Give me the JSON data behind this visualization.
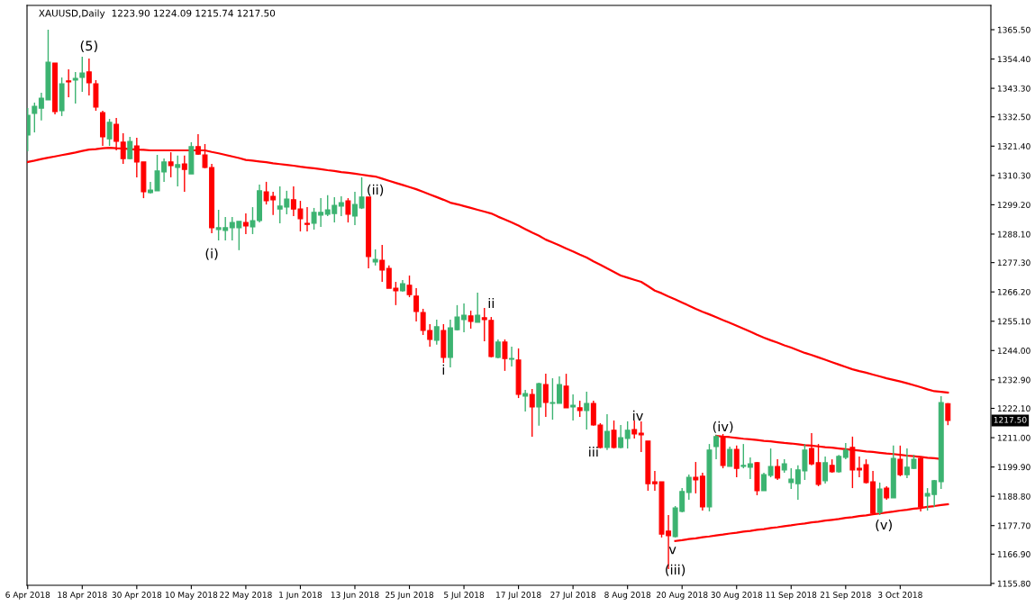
{
  "chart_data": {
    "type": "candlestick",
    "title": "XAUUSD,Daily",
    "subtitle": "1223.90 1224.09 1215.74 1217.50",
    "categories": [
      "6 Apr 2018",
      null,
      null,
      null,
      null,
      null,
      null,
      null,
      "18 Apr 2018",
      null,
      null,
      null,
      null,
      null,
      null,
      null,
      "30 Apr 2018",
      null,
      null,
      null,
      null,
      null,
      null,
      null,
      "10 May 2018",
      null,
      null,
      null,
      null,
      null,
      null,
      null,
      "22 May 2018",
      null,
      null,
      null,
      null,
      null,
      null,
      null,
      "1 Jun 2018",
      null,
      null,
      null,
      null,
      null,
      null,
      null,
      "13 Jun 2018",
      null,
      null,
      null,
      null,
      null,
      null,
      null,
      "25 Jun 2018",
      null,
      null,
      null,
      null,
      null,
      null,
      null,
      "5 Jul 2018",
      null,
      null,
      null,
      null,
      null,
      null,
      null,
      "17 Jul 2018",
      null,
      null,
      null,
      null,
      null,
      null,
      null,
      "27 Jul 2018",
      null,
      null,
      null,
      null,
      null,
      null,
      null,
      "8 Aug 2018",
      null,
      null,
      null,
      null,
      null,
      null,
      null,
      "20 Aug 2018",
      null,
      null,
      null,
      null,
      null,
      null,
      null,
      "30 Aug 2018",
      null,
      null,
      null,
      null,
      null,
      null,
      null,
      "11 Sep 2018",
      null,
      null,
      null,
      null,
      null,
      null,
      null,
      "21 Sep 2018",
      null,
      null,
      null,
      null,
      null,
      null,
      null,
      "3 Oct 2018",
      null,
      null,
      null,
      null,
      null,
      null,
      null
    ],
    "ohlc": [
      [
        1325.6,
        1335.8,
        1319.5,
        1333.1
      ],
      [
        1333.8,
        1337.9,
        1326.6,
        1336.5
      ],
      [
        1335.8,
        1341.6,
        1331.1,
        1339.6
      ],
      [
        1338.9,
        1365.5,
        1338.9,
        1353.2
      ],
      [
        1352.9,
        1352.9,
        1333.4,
        1334.5
      ],
      [
        1334.8,
        1347.4,
        1332.8,
        1345.0
      ],
      [
        1346.1,
        1350.5,
        1339.9,
        1345.7
      ],
      [
        1346.4,
        1349.5,
        1337.5,
        1347.1
      ],
      [
        1347.4,
        1355.3,
        1342.0,
        1349.1
      ],
      [
        1349.5,
        1354.6,
        1340.6,
        1345.4
      ],
      [
        1345.0,
        1346.4,
        1334.8,
        1336.2
      ],
      [
        1334.1,
        1334.8,
        1321.5,
        1324.9
      ],
      [
        1324.2,
        1331.7,
        1321.5,
        1330.4
      ],
      [
        1329.7,
        1332.1,
        1319.8,
        1323.2
      ],
      [
        1322.9,
        1326.3,
        1314.7,
        1316.7
      ],
      [
        1316.7,
        1324.9,
        1316.4,
        1323.2
      ],
      [
        1321.5,
        1324.6,
        1309.6,
        1315.4
      ],
      [
        1315.4,
        1315.4,
        1301.7,
        1304.1
      ],
      [
        1303.8,
        1307.9,
        1303.4,
        1304.8
      ],
      [
        1304.5,
        1318.1,
        1304.5,
        1312.0
      ],
      [
        1311.6,
        1316.7,
        1307.9,
        1315.4
      ],
      [
        1315.4,
        1319.1,
        1309.6,
        1314.0
      ],
      [
        1313.3,
        1317.8,
        1306.2,
        1314.4
      ],
      [
        1314.7,
        1317.8,
        1304.1,
        1312.6
      ],
      [
        1310.9,
        1322.9,
        1310.9,
        1321.2
      ],
      [
        1321.2,
        1325.9,
        1318.1,
        1318.4
      ],
      [
        1318.1,
        1322.2,
        1313.0,
        1313.3
      ],
      [
        1313.3,
        1314.7,
        1288.4,
        1290.5
      ],
      [
        1289.8,
        1297.3,
        1285.7,
        1290.5
      ],
      [
        1289.5,
        1294.6,
        1285.7,
        1290.5
      ],
      [
        1290.5,
        1294.6,
        1285.7,
        1292.5
      ],
      [
        1290.5,
        1292.9,
        1282.0,
        1292.9
      ],
      [
        1292.5,
        1295.9,
        1288.1,
        1291.2
      ],
      [
        1290.8,
        1298.3,
        1288.1,
        1293.2
      ],
      [
        1293.2,
        1306.8,
        1292.5,
        1304.5
      ],
      [
        1304.1,
        1307.9,
        1299.3,
        1300.7
      ],
      [
        1302.4,
        1304.1,
        1295.3,
        1301.1
      ],
      [
        1297.6,
        1306.2,
        1292.2,
        1298.7
      ],
      [
        1298.3,
        1304.5,
        1295.6,
        1301.4
      ],
      [
        1301.1,
        1306.2,
        1294.9,
        1297.6
      ],
      [
        1297.6,
        1300.7,
        1289.1,
        1293.9
      ],
      [
        1292.2,
        1298.3,
        1289.1,
        1291.8
      ],
      [
        1292.2,
        1298.0,
        1289.8,
        1296.3
      ],
      [
        1295.3,
        1301.7,
        1290.8,
        1296.3
      ],
      [
        1295.6,
        1302.8,
        1294.9,
        1297.3
      ],
      [
        1295.9,
        1302.1,
        1292.5,
        1299.0
      ],
      [
        1298.7,
        1302.4,
        1294.9,
        1300.0
      ],
      [
        1300.7,
        1301.7,
        1292.5,
        1295.6
      ],
      [
        1294.9,
        1304.1,
        1291.5,
        1299.3
      ],
      [
        1298.0,
        1309.6,
        1297.6,
        1302.1
      ],
      [
        1302.1,
        1302.1,
        1275.1,
        1279.6
      ],
      [
        1277.5,
        1282.3,
        1276.2,
        1278.5
      ],
      [
        1278.2,
        1284.0,
        1270.0,
        1274.5
      ],
      [
        1275.1,
        1276.2,
        1267.6,
        1267.6
      ],
      [
        1267.6,
        1270.0,
        1261.2,
        1266.6
      ],
      [
        1266.6,
        1270.7,
        1266.3,
        1269.3
      ],
      [
        1268.7,
        1272.4,
        1264.2,
        1265.2
      ],
      [
        1264.6,
        1267.6,
        1255.0,
        1258.8
      ],
      [
        1258.4,
        1259.8,
        1249.9,
        1251.6
      ],
      [
        1251.6,
        1254.0,
        1245.5,
        1248.2
      ],
      [
        1247.9,
        1255.7,
        1246.2,
        1253.0
      ],
      [
        1251.6,
        1254.0,
        1239.3,
        1241.4
      ],
      [
        1241.4,
        1255.7,
        1237.6,
        1252.6
      ],
      [
        1251.9,
        1261.2,
        1251.6,
        1256.7
      ],
      [
        1255.7,
        1261.8,
        1250.9,
        1257.4
      ],
      [
        1257.1,
        1259.1,
        1252.3,
        1255.0
      ],
      [
        1254.7,
        1265.9,
        1254.7,
        1257.4
      ],
      [
        1256.4,
        1260.1,
        1247.5,
        1255.7
      ],
      [
        1255.4,
        1256.7,
        1241.4,
        1241.7
      ],
      [
        1241.4,
        1248.2,
        1241.0,
        1247.2
      ],
      [
        1247.2,
        1248.2,
        1236.3,
        1241.0
      ],
      [
        1240.7,
        1245.5,
        1238.0,
        1241.0
      ],
      [
        1240.4,
        1244.8,
        1226.0,
        1227.4
      ],
      [
        1226.7,
        1229.1,
        1220.9,
        1227.7
      ],
      [
        1227.4,
        1229.4,
        1211.4,
        1222.6
      ],
      [
        1222.6,
        1231.8,
        1215.5,
        1231.5
      ],
      [
        1231.1,
        1235.2,
        1218.9,
        1224.3
      ],
      [
        1224.0,
        1233.5,
        1217.8,
        1224.3
      ],
      [
        1224.0,
        1234.2,
        1224.0,
        1231.1
      ],
      [
        1230.5,
        1235.2,
        1222.3,
        1222.3
      ],
      [
        1222.6,
        1227.4,
        1217.5,
        1223.3
      ],
      [
        1222.3,
        1225.0,
        1218.9,
        1221.3
      ],
      [
        1221.3,
        1228.4,
        1214.1,
        1224.0
      ],
      [
        1224.0,
        1225.0,
        1215.5,
        1215.8
      ],
      [
        1215.8,
        1216.5,
        1206.9,
        1207.3
      ],
      [
        1207.3,
        1219.9,
        1206.3,
        1213.4
      ],
      [
        1213.8,
        1217.5,
        1206.9,
        1207.3
      ],
      [
        1207.3,
        1215.8,
        1206.9,
        1211.0
      ],
      [
        1210.7,
        1217.2,
        1206.9,
        1213.8
      ],
      [
        1214.1,
        1217.5,
        1210.7,
        1212.4
      ],
      [
        1212.7,
        1217.2,
        1205.6,
        1212.1
      ],
      [
        1209.7,
        1209.7,
        1190.9,
        1193.6
      ],
      [
        1194.3,
        1198.4,
        1190.9,
        1193.6
      ],
      [
        1194.3,
        1194.3,
        1173.2,
        1174.5
      ],
      [
        1175.6,
        1181.7,
        1161.2,
        1173.9
      ],
      [
        1173.5,
        1185.1,
        1173.2,
        1184.4
      ],
      [
        1183.1,
        1191.9,
        1182.7,
        1190.6
      ],
      [
        1190.2,
        1197.0,
        1187.5,
        1196.0
      ],
      [
        1196.0,
        1201.8,
        1189.9,
        1195.0
      ],
      [
        1196.4,
        1197.7,
        1183.4,
        1184.8
      ],
      [
        1184.8,
        1208.6,
        1183.1,
        1206.3
      ],
      [
        1207.6,
        1212.1,
        1202.8,
        1211.4
      ],
      [
        1211.4,
        1212.4,
        1199.4,
        1200.5
      ],
      [
        1200.1,
        1207.6,
        1200.1,
        1206.6
      ],
      [
        1206.6,
        1208.0,
        1196.0,
        1199.4
      ],
      [
        1200.1,
        1208.6,
        1199.4,
        1200.5
      ],
      [
        1199.8,
        1203.5,
        1195.3,
        1201.1
      ],
      [
        1201.5,
        1201.8,
        1189.2,
        1190.9
      ],
      [
        1190.9,
        1197.7,
        1190.9,
        1197.0
      ],
      [
        1196.7,
        1206.9,
        1196.0,
        1200.1
      ],
      [
        1200.1,
        1202.8,
        1195.0,
        1195.7
      ],
      [
        1198.8,
        1202.8,
        1197.7,
        1201.1
      ],
      [
        1194.0,
        1199.4,
        1191.6,
        1195.3
      ],
      [
        1193.6,
        1200.5,
        1187.5,
        1198.8
      ],
      [
        1198.4,
        1208.6,
        1195.0,
        1206.3
      ],
      [
        1206.9,
        1212.7,
        1200.5,
        1201.1
      ],
      [
        1201.5,
        1208.6,
        1192.6,
        1193.3
      ],
      [
        1194.7,
        1203.9,
        1193.6,
        1201.5
      ],
      [
        1200.5,
        1202.8,
        1197.7,
        1198.1
      ],
      [
        1198.1,
        1204.5,
        1197.7,
        1203.9
      ],
      [
        1203.5,
        1209.0,
        1202.8,
        1206.3
      ],
      [
        1207.3,
        1211.4,
        1191.9,
        1198.8
      ],
      [
        1199.4,
        1203.9,
        1196.0,
        1198.8
      ],
      [
        1200.8,
        1202.8,
        1193.6,
        1194.0
      ],
      [
        1194.3,
        1198.4,
        1181.7,
        1182.4
      ],
      [
        1182.7,
        1194.0,
        1181.7,
        1191.6
      ],
      [
        1191.9,
        1192.6,
        1187.5,
        1188.2
      ],
      [
        1188.2,
        1208.0,
        1188.2,
        1203.2
      ],
      [
        1202.8,
        1208.0,
        1196.4,
        1197.0
      ],
      [
        1197.0,
        1206.9,
        1195.7,
        1199.8
      ],
      [
        1199.4,
        1204.5,
        1199.1,
        1202.8
      ],
      [
        1203.2,
        1203.9,
        1183.1,
        1184.8
      ],
      [
        1188.9,
        1191.9,
        1183.4,
        1189.9
      ],
      [
        1189.5,
        1195.0,
        1184.8,
        1194.7
      ],
      [
        1194.3,
        1226.7,
        1191.6,
        1224.3
      ],
      [
        1223.9,
        1224.09,
        1215.74,
        1217.5
      ]
    ],
    "colors": [
      "#3cb371",
      "#3cb371",
      "#3cb371",
      "#3cb371",
      "#ff0000",
      "#3cb371",
      "#ff0000",
      "#3cb371",
      "#3cb371",
      "#ff0000",
      "#ff0000",
      "#ff0000",
      "#3cb371",
      "#ff0000",
      "#ff0000",
      "#3cb371",
      "#ff0000",
      "#ff0000",
      "#3cb371",
      "#3cb371",
      "#3cb371",
      "#ff0000",
      "#3cb371",
      "#ff0000",
      "#3cb371",
      "#ff0000",
      "#ff0000",
      "#ff0000",
      "#3cb371",
      "#3cb371",
      "#3cb371",
      "#3cb371",
      "#ff0000",
      "#3cb371",
      "#3cb371",
      "#ff0000",
      "#ff0000",
      "#3cb371",
      "#3cb371",
      "#ff0000",
      "#ff0000",
      "#ff0000",
      "#3cb371",
      "#3cb371",
      "#3cb371",
      "#3cb371",
      "#3cb371",
      "#ff0000",
      "#3cb371",
      "#3cb371",
      "#ff0000",
      "#3cb371",
      "#ff0000",
      "#ff0000",
      "#ff0000",
      "#3cb371",
      "#ff0000",
      "#ff0000",
      "#ff0000",
      "#ff0000",
      "#3cb371",
      "#ff0000",
      "#3cb371",
      "#3cb371",
      "#3cb371",
      "#ff0000",
      "#3cb371",
      "#ff0000",
      "#ff0000",
      "#3cb371",
      "#ff0000",
      "#3cb371",
      "#ff0000",
      "#3cb371",
      "#ff0000",
      "#3cb371",
      "#ff0000",
      "#3cb371",
      "#3cb371",
      "#ff0000",
      "#3cb371",
      "#ff0000",
      "#3cb371",
      "#ff0000",
      "#ff0000",
      "#3cb371",
      "#ff0000",
      "#3cb371",
      "#3cb371",
      "#ff0000",
      "#ff0000",
      "#ff0000",
      "#ff0000",
      "#ff0000",
      "#ff0000",
      "#3cb371",
      "#3cb371",
      "#3cb371",
      "#ff0000",
      "#ff0000",
      "#3cb371",
      "#3cb371",
      "#ff0000",
      "#3cb371",
      "#ff0000",
      "#3cb371",
      "#3cb371",
      "#ff0000",
      "#3cb371",
      "#3cb371",
      "#ff0000",
      "#3cb371",
      "#3cb371",
      "#3cb371",
      "#3cb371",
      "#ff0000",
      "#ff0000",
      "#3cb371",
      "#ff0000",
      "#3cb371",
      "#3cb371",
      "#ff0000",
      "#ff0000",
      "#ff0000",
      "#ff0000",
      "#3cb371",
      "#ff0000",
      "#3cb371",
      "#ff0000",
      "#3cb371",
      "#3cb371",
      "#ff0000",
      "#3cb371",
      "#3cb371",
      "#3cb371",
      "#ff0000"
    ],
    "series": [
      {
        "type": "line",
        "color": "#ff0000",
        "values": [
          1315.4,
          1315.9,
          1316.5,
          1317.0,
          1317.5,
          1318.0,
          1318.5,
          1319.0,
          1319.6,
          1320.1,
          1320.3,
          1320.6,
          1320.8,
          1320.6,
          1320.5,
          1320.3,
          1320.1,
          1320.0,
          1319.8,
          1319.8,
          1319.8,
          1319.8,
          1319.8,
          1319.8,
          1319.8,
          1319.8,
          1319.8,
          1319.2,
          1318.7,
          1318.1,
          1317.5,
          1316.9,
          1316.2,
          1315.9,
          1315.6,
          1315.3,
          1314.9,
          1314.6,
          1314.3,
          1314.0,
          1313.6,
          1313.3,
          1313.0,
          1312.7,
          1312.3,
          1312.0,
          1311.6,
          1311.3,
          1311.0,
          1310.6,
          1310.2,
          1309.9,
          1309.1,
          1308.3,
          1307.5,
          1306.7,
          1305.9,
          1305.1,
          1304.1,
          1303.1,
          1302.1,
          1301.1,
          1300.0,
          1299.4,
          1298.7,
          1298.0,
          1297.3,
          1296.6,
          1295.9,
          1294.7,
          1293.6,
          1292.5,
          1291.3,
          1290.0,
          1288.7,
          1287.5,
          1286.0,
          1284.9,
          1283.8,
          1282.6,
          1281.5,
          1280.3,
          1279.2,
          1277.8,
          1276.5,
          1275.1,
          1273.8,
          1272.4,
          1271.6,
          1270.8,
          1270.0,
          1268.4,
          1266.7,
          1265.7,
          1264.5,
          1263.4,
          1262.2,
          1261.0,
          1259.8,
          1258.7,
          1257.7,
          1256.6,
          1255.5,
          1254.5,
          1253.4,
          1252.3,
          1251.2,
          1250.0,
          1248.9,
          1247.9,
          1247.0,
          1246.0,
          1245.1,
          1244.1,
          1243.1,
          1242.3,
          1241.4,
          1240.5,
          1239.6,
          1238.7,
          1237.8,
          1236.9,
          1236.2,
          1235.6,
          1234.9,
          1234.2,
          1233.5,
          1232.9,
          1232.3,
          1231.6,
          1230.9,
          1230.1,
          1229.3,
          1228.6,
          1228.4,
          1228.1
        ]
      },
      {
        "type": "line",
        "color": "#ff0000",
        "values": [
          null,
          null,
          null,
          null,
          null,
          null,
          null,
          null,
          null,
          null,
          null,
          null,
          null,
          null,
          null,
          null,
          null,
          null,
          null,
          null,
          null,
          null,
          null,
          null,
          null,
          null,
          null,
          null,
          null,
          null,
          null,
          null,
          null,
          null,
          null,
          null,
          null,
          null,
          null,
          null,
          null,
          null,
          null,
          null,
          null,
          null,
          null,
          null,
          null,
          null,
          null,
          null,
          null,
          null,
          null,
          null,
          null,
          null,
          null,
          null,
          null,
          null,
          null,
          null,
          null,
          null,
          null,
          null,
          null,
          null,
          null,
          null,
          null,
          null,
          null,
          null,
          null,
          null,
          null,
          null,
          null,
          null,
          null,
          null,
          null,
          null,
          null,
          null,
          null,
          null,
          null,
          null,
          null,
          null,
          null,
          null,
          null,
          null,
          null,
          null,
          null,
          1211.7,
          1211.4,
          1211.2,
          1210.9,
          1210.6,
          1210.4,
          1210.1,
          1209.8,
          1209.6,
          1209.3,
          1209.0,
          1208.8,
          1208.5,
          1208.2,
          1208.0,
          1207.7,
          1207.4,
          1207.2,
          1206.9,
          1206.6,
          1206.4,
          1206.1,
          1205.8,
          1205.6,
          1205.3,
          1205.0,
          1204.8,
          1204.5,
          1204.2,
          1204.0,
          1203.7,
          1203.4,
          1203.2,
          1202.9,
          null
        ]
      },
      {
        "type": "line",
        "color": "#ff0000",
        "values": [
          null,
          null,
          null,
          null,
          null,
          null,
          null,
          null,
          null,
          null,
          null,
          null,
          null,
          null,
          null,
          null,
          null,
          null,
          null,
          null,
          null,
          null,
          null,
          null,
          null,
          null,
          null,
          null,
          null,
          null,
          null,
          null,
          null,
          null,
          null,
          null,
          null,
          null,
          null,
          null,
          null,
          null,
          null,
          null,
          null,
          null,
          null,
          null,
          null,
          null,
          null,
          null,
          null,
          null,
          null,
          null,
          null,
          null,
          null,
          null,
          null,
          null,
          null,
          null,
          null,
          null,
          null,
          null,
          null,
          null,
          null,
          null,
          null,
          null,
          null,
          null,
          null,
          null,
          null,
          null,
          null,
          null,
          null,
          null,
          null,
          null,
          null,
          null,
          null,
          null,
          null,
          null,
          null,
          null,
          null,
          1171.9,
          1172.2,
          1172.6,
          1172.9,
          1173.3,
          1173.6,
          1174.0,
          1174.3,
          1174.7,
          1175.0,
          1175.4,
          1175.7,
          1176.1,
          1176.4,
          1176.8,
          1177.1,
          1177.5,
          1177.8,
          1178.2,
          1178.5,
          1178.9,
          1179.2,
          1179.6,
          1179.9,
          1180.2,
          1180.6,
          1180.9,
          1181.3,
          1181.6,
          1182.0,
          1182.3,
          1182.7,
          1183.0,
          1183.4,
          1183.7,
          1184.1,
          1184.4,
          1184.8,
          1185.1,
          1185.5,
          1185.8
        ]
      }
    ],
    "ylim": [
      1155.1,
      1374.7
    ],
    "yticks": [
      {
        "value": 1365.5,
        "label": "1365.50"
      },
      {
        "value": 1354.4,
        "label": "1354.40"
      },
      {
        "value": 1343.3,
        "label": "1343.30"
      },
      {
        "value": 1332.5,
        "label": "1332.50"
      },
      {
        "value": 1321.4,
        "label": "1321.40"
      },
      {
        "value": 1310.3,
        "label": "1310.30"
      },
      {
        "value": 1299.2,
        "label": "1299.20"
      },
      {
        "value": 1288.1,
        "label": "1288.10"
      },
      {
        "value": 1277.3,
        "label": "1277.30"
      },
      {
        "value": 1266.2,
        "label": "1266.20"
      },
      {
        "value": 1255.1,
        "label": "1255.10"
      },
      {
        "value": 1244.0,
        "label": "1244.00"
      },
      {
        "value": 1232.9,
        "label": "1232.90"
      },
      {
        "value": 1222.1,
        "label": "1222.10"
      },
      {
        "value": 1211.0,
        "label": "1211.00"
      },
      {
        "value": 1199.9,
        "label": "1199.90"
      },
      {
        "value": 1188.8,
        "label": "1188.80"
      },
      {
        "value": 1177.7,
        "label": "1177.70"
      },
      {
        "value": 1166.9,
        "label": "1166.90"
      },
      {
        "value": 1155.8,
        "label": "1155.80"
      }
    ],
    "annotations": [
      "(5)",
      "(i)",
      "(ii)",
      "i",
      "ii",
      "iii",
      "iv",
      "v",
      "(iii)",
      "(iv)",
      "(v)",
      "1217.50"
    ]
  }
}
